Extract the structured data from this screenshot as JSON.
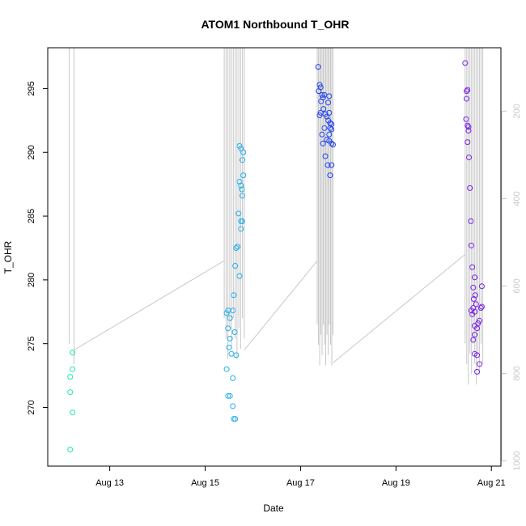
{
  "chart_data": {
    "type": "scatter",
    "title": "ATOM1 Northbound T_OHR",
    "xlabel": "Date",
    "ylabel": "T_OHR",
    "x_ticks": [
      "Aug 13",
      "Aug 15",
      "Aug 17",
      "Aug 19",
      "Aug 21"
    ],
    "x_tick_days": [
      13,
      15,
      17,
      19,
      21
    ],
    "xlim_days": [
      11.7,
      21.2
    ],
    "y_ticks": [
      270,
      275,
      280,
      285,
      290,
      295
    ],
    "ylim": [
      265.4,
      298.2
    ],
    "y2_ticks": [
      200,
      400,
      600,
      800,
      1000
    ],
    "y2lim": [
      1012,
      55
    ],
    "colors": {
      "grey_line": "#c8c8c8",
      "secondary_axis": "#c8c8c8",
      "group1": "#1de8b5",
      "group2": "#22aeea",
      "group3": "#2244ee",
      "group4": "#7a22e8"
    },
    "grid": false,
    "legend": "none",
    "series": [
      {
        "color": "#1de8b5",
        "points": [
          [
            12.17,
            272.4
          ],
          [
            12.17,
            271.2
          ],
          [
            12.17,
            266.7
          ],
          [
            12.22,
            274.3
          ],
          [
            12.22,
            273.0
          ],
          [
            12.22,
            269.6
          ]
        ]
      },
      {
        "color": "#22aeea",
        "points": [
          [
            15.45,
            277.4
          ],
          [
            15.48,
            277.6
          ],
          [
            15.52,
            277.0
          ],
          [
            15.58,
            277.6
          ],
          [
            15.48,
            276.2
          ],
          [
            15.52,
            275.4
          ],
          [
            15.62,
            275.9
          ],
          [
            15.65,
            274.1
          ],
          [
            15.5,
            274.7
          ],
          [
            15.55,
            274.2
          ],
          [
            15.45,
            273.0
          ],
          [
            15.58,
            272.3
          ],
          [
            15.48,
            270.9
          ],
          [
            15.52,
            270.9
          ],
          [
            15.58,
            270.1
          ],
          [
            15.6,
            269.1
          ],
          [
            15.63,
            269.1
          ],
          [
            15.6,
            278.8
          ],
          [
            15.63,
            281.1
          ],
          [
            15.65,
            282.5
          ],
          [
            15.68,
            282.6
          ],
          [
            15.72,
            280.3
          ],
          [
            15.7,
            285.2
          ],
          [
            15.75,
            284.6
          ],
          [
            15.78,
            284.6
          ],
          [
            15.75,
            284.0
          ],
          [
            15.72,
            287.7
          ],
          [
            15.75,
            287.4
          ],
          [
            15.77,
            287.1
          ],
          [
            15.78,
            286.6
          ],
          [
            15.8,
            288.2
          ],
          [
            15.72,
            290.5
          ],
          [
            15.75,
            290.3
          ],
          [
            15.8,
            290.0
          ],
          [
            15.78,
            289.4
          ]
        ]
      },
      {
        "color": "#2244ee",
        "points": [
          [
            17.37,
            296.7
          ],
          [
            17.4,
            295.3
          ],
          [
            17.42,
            295.1
          ],
          [
            17.38,
            294.8
          ],
          [
            17.45,
            294.5
          ],
          [
            17.5,
            294.5
          ],
          [
            17.47,
            294.3
          ],
          [
            17.43,
            294.0
          ],
          [
            17.6,
            294.4
          ],
          [
            17.58,
            293.9
          ],
          [
            17.48,
            293.4
          ],
          [
            17.42,
            293.1
          ],
          [
            17.4,
            292.9
          ],
          [
            17.52,
            293.0
          ],
          [
            17.55,
            292.8
          ],
          [
            17.6,
            293.1
          ],
          [
            17.58,
            292.5
          ],
          [
            17.62,
            292.3
          ],
          [
            17.65,
            292.2
          ],
          [
            17.62,
            291.9
          ],
          [
            17.65,
            291.8
          ],
          [
            17.5,
            291.9
          ],
          [
            17.45,
            291.4
          ],
          [
            17.6,
            291.4
          ],
          [
            17.55,
            291.0
          ],
          [
            17.6,
            290.9
          ],
          [
            17.65,
            290.7
          ],
          [
            17.68,
            290.6
          ],
          [
            17.47,
            290.7
          ],
          [
            17.52,
            289.7
          ],
          [
            17.57,
            289.0
          ],
          [
            17.65,
            289.0
          ],
          [
            17.62,
            288.2
          ]
        ]
      },
      {
        "color": "#7a22e8",
        "points": [
          [
            20.45,
            297.0
          ],
          [
            20.48,
            294.8
          ],
          [
            20.5,
            294.9
          ],
          [
            20.48,
            294.2
          ],
          [
            20.47,
            292.6
          ],
          [
            20.5,
            292.1
          ],
          [
            20.52,
            292.0
          ],
          [
            20.52,
            291.7
          ],
          [
            20.5,
            290.8
          ],
          [
            20.53,
            289.6
          ],
          [
            20.55,
            287.2
          ],
          [
            20.57,
            284.6
          ],
          [
            20.58,
            282.7
          ],
          [
            20.6,
            281.0
          ],
          [
            20.62,
            279.4
          ],
          [
            20.65,
            280.2
          ],
          [
            20.63,
            278.5
          ],
          [
            20.66,
            278.8
          ],
          [
            20.68,
            278.1
          ],
          [
            20.62,
            277.8
          ],
          [
            20.65,
            277.5
          ],
          [
            20.6,
            277.3
          ],
          [
            20.58,
            277.6
          ],
          [
            20.72,
            276.6
          ],
          [
            20.65,
            276.4
          ],
          [
            20.7,
            276.2
          ],
          [
            20.75,
            276.8
          ],
          [
            20.78,
            277.8
          ],
          [
            20.8,
            277.9
          ],
          [
            20.8,
            279.5
          ],
          [
            20.62,
            275.3
          ],
          [
            20.65,
            275.7
          ],
          [
            20.65,
            274.2
          ],
          [
            20.7,
            274.1
          ],
          [
            20.75,
            273.4
          ],
          [
            20.7,
            272.8
          ]
        ]
      }
    ],
    "grey_series": {
      "color": "#c8c8c8",
      "bursts": [
        {
          "x_start": 12.15,
          "x_end": 12.25,
          "low": 275.0,
          "top_to_edge": true,
          "count": 2
        },
        {
          "x_start": 15.4,
          "x_end": 15.82,
          "low": 277.0,
          "top_to_edge": true,
          "count": 12
        },
        {
          "x_start": 17.35,
          "x_end": 17.68,
          "low": 276.5,
          "top_to_edge": true,
          "count": 14
        },
        {
          "x_start": 20.45,
          "x_end": 20.82,
          "low": 275.0,
          "top_to_edge": true,
          "count": 12
        }
      ],
      "connectors": [
        [
          [
            12.25,
            274.5
          ],
          [
            15.4,
            281.5
          ]
        ],
        [
          [
            15.82,
            274.5
          ],
          [
            17.35,
            281.5
          ]
        ],
        [
          [
            17.68,
            273.5
          ],
          [
            20.45,
            282.0
          ]
        ]
      ]
    }
  }
}
